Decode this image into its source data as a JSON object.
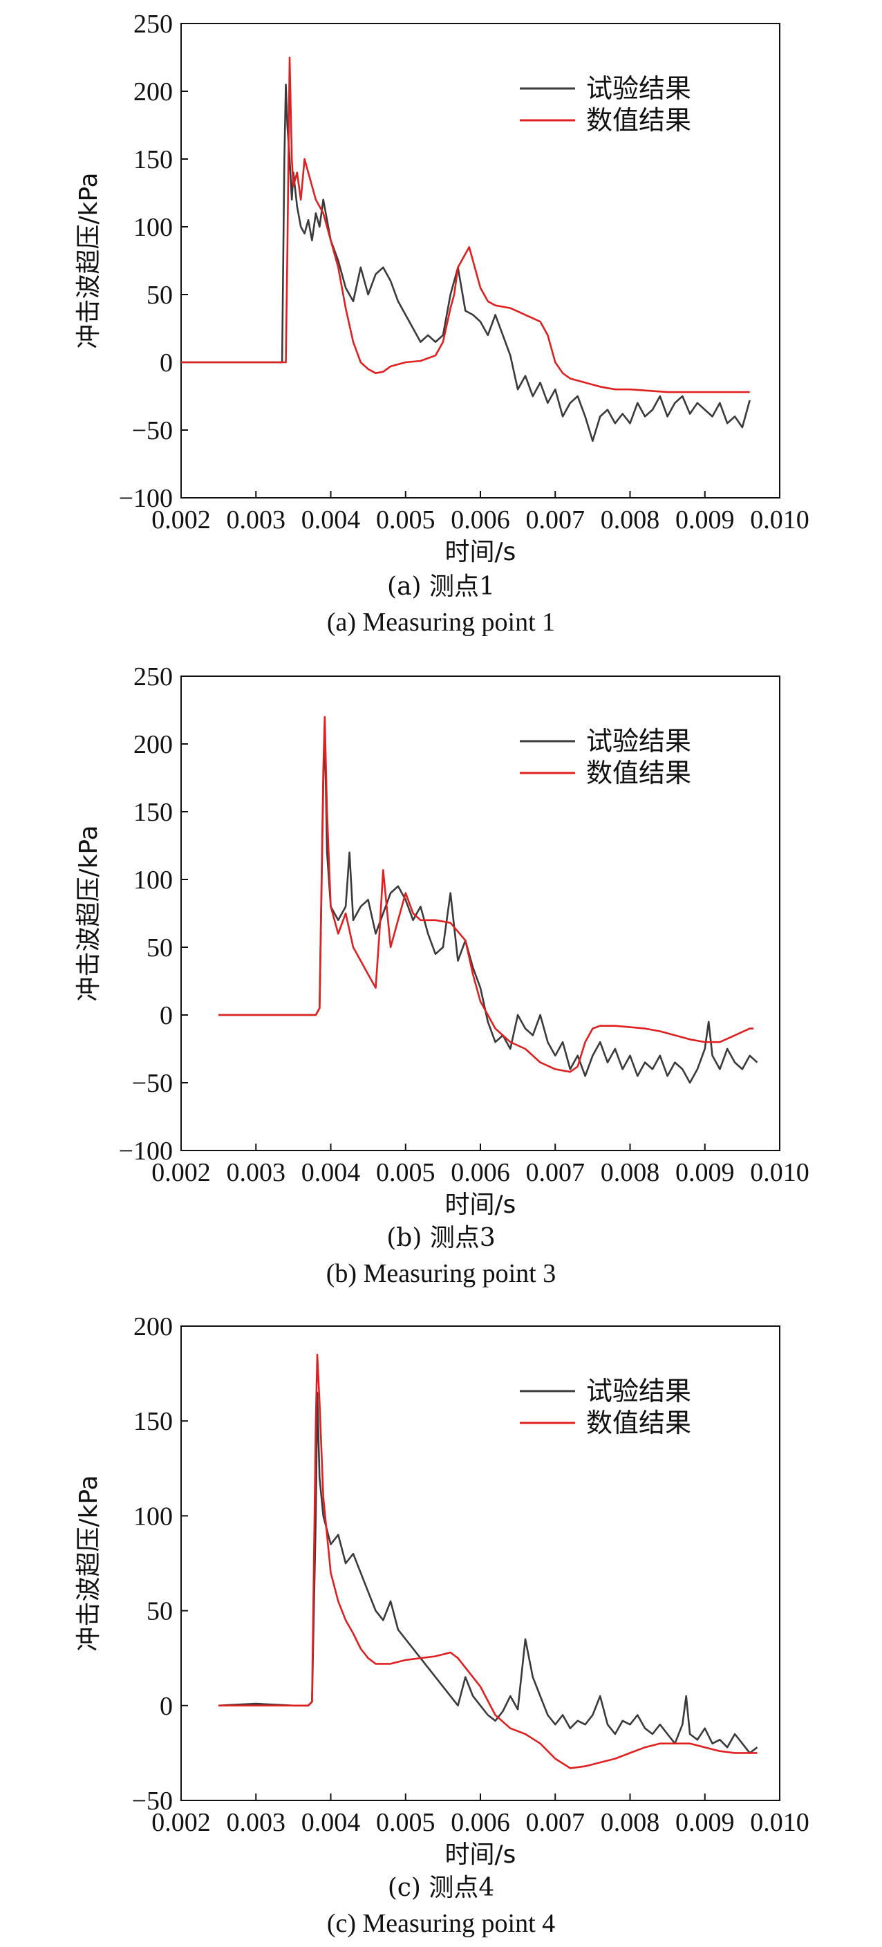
{
  "colors": {
    "experiment": "#3a3a3a",
    "numerical": "#e02020",
    "axis": "#111111"
  },
  "chart_data": [
    {
      "type": "line",
      "caption_zh": "(a) 测点1",
      "caption_en": "(a) Measuring point 1",
      "xlabel": "时间/s",
      "ylabel": "冲击波超压/kPa",
      "xlim": [
        0.002,
        0.01
      ],
      "ylim": [
        -100,
        250
      ],
      "xticks": [
        "0.002",
        "0.003",
        "0.004",
        "0.005",
        "0.006",
        "0.007",
        "0.008",
        "0.009",
        "0.010"
      ],
      "yticks": [
        "250",
        "200",
        "150",
        "100",
        "50",
        "0",
        "−50",
        "−100"
      ],
      "legend": "top-right",
      "grid": false,
      "series": [
        {
          "name": "试验结果",
          "color": "#3a3a3a",
          "x": [
            0.002,
            0.003,
            0.00335,
            0.00338,
            0.0034,
            0.00342,
            0.00345,
            0.00348,
            0.0035,
            0.00355,
            0.0036,
            0.00365,
            0.0037,
            0.00375,
            0.0038,
            0.00385,
            0.0039,
            0.00395,
            0.004,
            0.0041,
            0.0042,
            0.0043,
            0.0044,
            0.0045,
            0.0046,
            0.0047,
            0.0048,
            0.0049,
            0.005,
            0.0051,
            0.0052,
            0.0053,
            0.0054,
            0.0055,
            0.0056,
            0.0057,
            0.0058,
            0.0059,
            0.006,
            0.0061,
            0.0062,
            0.0063,
            0.0064,
            0.0065,
            0.0066,
            0.0067,
            0.0068,
            0.0069,
            0.007,
            0.0071,
            0.0072,
            0.0073,
            0.0074,
            0.0075,
            0.0076,
            0.0077,
            0.0078,
            0.0079,
            0.008,
            0.0081,
            0.0082,
            0.0083,
            0.0084,
            0.0085,
            0.0086,
            0.0087,
            0.0088,
            0.0089,
            0.009,
            0.0091,
            0.0092,
            0.0093,
            0.0094,
            0.0095,
            0.0096
          ],
          "y": [
            0,
            0,
            0,
            150,
            205,
            175,
            150,
            120,
            140,
            115,
            100,
            95,
            105,
            90,
            110,
            100,
            120,
            105,
            90,
            75,
            55,
            45,
            70,
            50,
            65,
            70,
            60,
            45,
            35,
            25,
            15,
            20,
            15,
            20,
            50,
            70,
            38,
            35,
            30,
            20,
            35,
            20,
            5,
            -20,
            -10,
            -25,
            -15,
            -30,
            -20,
            -40,
            -30,
            -25,
            -40,
            -58,
            -40,
            -35,
            -45,
            -38,
            -45,
            -30,
            -40,
            -35,
            -25,
            -40,
            -30,
            -25,
            -38,
            -30,
            -35,
            -40,
            -30,
            -45,
            -40,
            -48,
            -28
          ]
        },
        {
          "name": "数值结果",
          "color": "#e02020",
          "x": [
            0.002,
            0.003,
            0.0034,
            0.00342,
            0.00345,
            0.00348,
            0.0035,
            0.00355,
            0.0036,
            0.00365,
            0.0037,
            0.0038,
            0.0039,
            0.004,
            0.0041,
            0.0042,
            0.0043,
            0.0044,
            0.0045,
            0.0046,
            0.0047,
            0.0048,
            0.005,
            0.0052,
            0.0054,
            0.0055,
            0.0056,
            0.00565,
            0.0057,
            0.0058,
            0.00585,
            0.0059,
            0.006,
            0.0061,
            0.0062,
            0.0064,
            0.0066,
            0.0068,
            0.0069,
            0.007,
            0.0071,
            0.0072,
            0.0074,
            0.0076,
            0.0078,
            0.008,
            0.0085,
            0.009,
            0.0096
          ],
          "y": [
            0,
            0,
            0,
            80,
            225,
            150,
            130,
            140,
            120,
            150,
            140,
            120,
            110,
            90,
            70,
            40,
            15,
            0,
            -5,
            -8,
            -7,
            -3,
            0,
            1,
            5,
            15,
            40,
            50,
            70,
            80,
            85,
            75,
            55,
            45,
            42,
            40,
            35,
            30,
            20,
            0,
            -8,
            -12,
            -15,
            -18,
            -20,
            -20,
            -22,
            -22,
            -22
          ]
        }
      ]
    },
    {
      "type": "line",
      "caption_zh": "(b) 测点3",
      "caption_en": "(b) Measuring point 3",
      "xlabel": "时间/s",
      "ylabel": "冲击波超压/kPa",
      "xlim": [
        0.002,
        0.01
      ],
      "ylim": [
        -100,
        250
      ],
      "xticks": [
        "0.002",
        "0.003",
        "0.004",
        "0.005",
        "0.006",
        "0.007",
        "0.008",
        "0.009",
        "0.010"
      ],
      "yticks": [
        "250",
        "200",
        "150",
        "100",
        "50",
        "0",
        "−50",
        "−100"
      ],
      "legend": "top-right",
      "grid": false,
      "series": [
        {
          "name": "试验结果",
          "color": "#3a3a3a",
          "x": [
            0.0025,
            0.0035,
            0.0038,
            0.00385,
            0.0039,
            0.00392,
            0.00395,
            0.004,
            0.0041,
            0.0042,
            0.00425,
            0.0043,
            0.0044,
            0.0045,
            0.0046,
            0.0047,
            0.0048,
            0.0049,
            0.005,
            0.0051,
            0.0052,
            0.0053,
            0.0054,
            0.0055,
            0.0056,
            0.0057,
            0.0058,
            0.0059,
            0.006,
            0.0061,
            0.0062,
            0.0063,
            0.0064,
            0.0065,
            0.0066,
            0.0067,
            0.0068,
            0.0069,
            0.007,
            0.0071,
            0.0072,
            0.0073,
            0.0074,
            0.0075,
            0.0076,
            0.0077,
            0.0078,
            0.0079,
            0.008,
            0.0081,
            0.0082,
            0.0083,
            0.0084,
            0.0085,
            0.0086,
            0.0087,
            0.0088,
            0.0089,
            0.009,
            0.00905,
            0.0091,
            0.0092,
            0.0093,
            0.0094,
            0.0095,
            0.0096,
            0.0097
          ],
          "y": [
            0,
            0,
            0,
            5,
            170,
            215,
            120,
            80,
            70,
            80,
            120,
            70,
            80,
            85,
            60,
            75,
            90,
            95,
            85,
            70,
            80,
            60,
            45,
            50,
            90,
            40,
            55,
            35,
            20,
            -5,
            -20,
            -15,
            -25,
            0,
            -10,
            -15,
            0,
            -20,
            -30,
            -20,
            -40,
            -30,
            -45,
            -30,
            -20,
            -35,
            -25,
            -40,
            -30,
            -45,
            -35,
            -40,
            -30,
            -45,
            -35,
            -40,
            -50,
            -40,
            -25,
            -5,
            -30,
            -40,
            -25,
            -35,
            -40,
            -30,
            -35
          ]
        },
        {
          "name": "数值结果",
          "color": "#e02020",
          "x": [
            0.0025,
            0.0035,
            0.0038,
            0.00385,
            0.0039,
            0.00392,
            0.00395,
            0.004,
            0.0041,
            0.0042,
            0.0043,
            0.0044,
            0.0045,
            0.0046,
            0.00465,
            0.0047,
            0.0048,
            0.0049,
            0.005,
            0.0051,
            0.0052,
            0.0054,
            0.0056,
            0.0058,
            0.0059,
            0.006,
            0.0062,
            0.0064,
            0.0066,
            0.0068,
            0.007,
            0.0072,
            0.0073,
            0.0074,
            0.0075,
            0.0076,
            0.0078,
            0.008,
            0.0082,
            0.0084,
            0.0086,
            0.0088,
            0.009,
            0.0092,
            0.0094,
            0.0096,
            0.00965
          ],
          "y": [
            0,
            0,
            0,
            5,
            180,
            220,
            150,
            80,
            60,
            75,
            50,
            40,
            30,
            20,
            60,
            107,
            50,
            70,
            90,
            75,
            70,
            70,
            68,
            55,
            30,
            10,
            -10,
            -20,
            -25,
            -35,
            -40,
            -42,
            -38,
            -20,
            -10,
            -8,
            -8,
            -9,
            -10,
            -12,
            -15,
            -18,
            -20,
            -20,
            -15,
            -10,
            -10
          ]
        }
      ]
    },
    {
      "type": "line",
      "caption_zh": "(c) 测点4",
      "caption_en": "(c) Measuring point 4",
      "xlabel": "时间/s",
      "ylabel": "冲击波超压/kPa",
      "xlim": [
        0.002,
        0.01
      ],
      "ylim": [
        -50,
        200
      ],
      "xticks": [
        "0.002",
        "0.003",
        "0.004",
        "0.005",
        "0.006",
        "0.007",
        "0.008",
        "0.009",
        "0.010"
      ],
      "yticks": [
        "200",
        "150",
        "100",
        "50",
        "0",
        "−50"
      ],
      "legend": "top-right",
      "grid": false,
      "series": [
        {
          "name": "试验结果",
          "color": "#3a3a3a",
          "x": [
            0.0025,
            0.003,
            0.0035,
            0.0037,
            0.00375,
            0.0038,
            0.00382,
            0.00385,
            0.0039,
            0.004,
            0.0041,
            0.0042,
            0.0043,
            0.0044,
            0.0045,
            0.0046,
            0.0047,
            0.0048,
            0.0049,
            0.005,
            0.0051,
            0.0052,
            0.0053,
            0.0054,
            0.0055,
            0.0056,
            0.0057,
            0.0058,
            0.0059,
            0.006,
            0.0061,
            0.0062,
            0.0063,
            0.0064,
            0.0065,
            0.0066,
            0.00665,
            0.0067,
            0.0068,
            0.0069,
            0.007,
            0.0071,
            0.0072,
            0.0073,
            0.0074,
            0.0075,
            0.0076,
            0.0077,
            0.0078,
            0.0079,
            0.008,
            0.0081,
            0.0082,
            0.0083,
            0.0084,
            0.0085,
            0.0086,
            0.0087,
            0.00875,
            0.0088,
            0.0089,
            0.009,
            0.0091,
            0.0092,
            0.0093,
            0.0094,
            0.0095,
            0.0096,
            0.0097
          ],
          "y": [
            0,
            1,
            0,
            0,
            2,
            100,
            165,
            120,
            100,
            85,
            90,
            75,
            80,
            70,
            60,
            50,
            45,
            55,
            40,
            35,
            30,
            25,
            20,
            15,
            10,
            5,
            0,
            15,
            5,
            0,
            -5,
            -8,
            -3,
            5,
            -2,
            35,
            25,
            15,
            5,
            -5,
            -10,
            -5,
            -12,
            -8,
            -10,
            -5,
            5,
            -10,
            -15,
            -8,
            -10,
            -5,
            -12,
            -15,
            -10,
            -15,
            -20,
            -10,
            5,
            -15,
            -18,
            -12,
            -20,
            -18,
            -22,
            -15,
            -20,
            -25,
            -22
          ]
        },
        {
          "name": "数值结果",
          "color": "#e02020",
          "x": [
            0.0025,
            0.003,
            0.0035,
            0.0037,
            0.00375,
            0.0038,
            0.00382,
            0.00385,
            0.0039,
            0.004,
            0.0041,
            0.0042,
            0.0043,
            0.0044,
            0.0045,
            0.0046,
            0.0047,
            0.0048,
            0.005,
            0.0052,
            0.0054,
            0.0055,
            0.0056,
            0.0057,
            0.0058,
            0.006,
            0.0062,
            0.0064,
            0.0066,
            0.0068,
            0.007,
            0.0072,
            0.0074,
            0.0076,
            0.0078,
            0.008,
            0.0082,
            0.0084,
            0.0086,
            0.0088,
            0.009,
            0.0092,
            0.0094,
            0.0096,
            0.0097
          ],
          "y": [
            0,
            0,
            0,
            0,
            2,
            150,
            185,
            160,
            110,
            70,
            55,
            45,
            38,
            30,
            25,
            22,
            22,
            22,
            24,
            25,
            26,
            27,
            28,
            25,
            20,
            10,
            -5,
            -12,
            -15,
            -20,
            -28,
            -33,
            -32,
            -30,
            -28,
            -25,
            -22,
            -20,
            -20,
            -20,
            -22,
            -24,
            -25,
            -25,
            -25
          ]
        }
      ]
    }
  ]
}
